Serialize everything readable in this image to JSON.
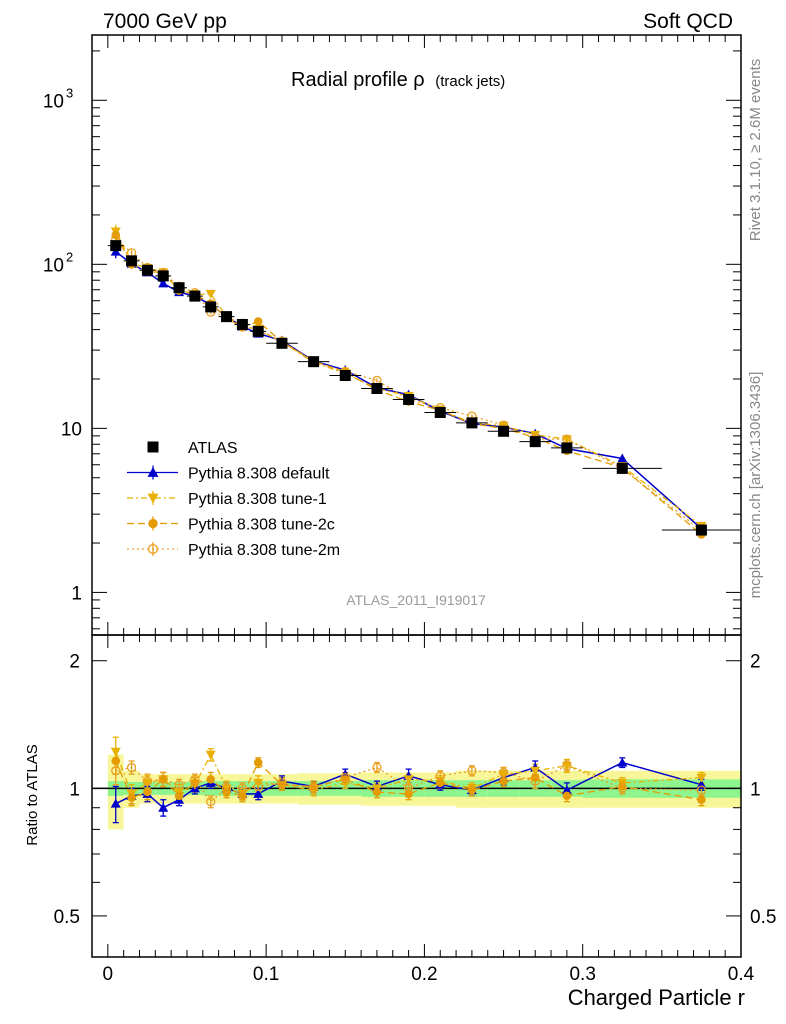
{
  "header": {
    "left": "7000 GeV pp",
    "right": "Soft QCD"
  },
  "side_labels": {
    "rivet": "Rivet 3.1.10, ≥ 2.6M events",
    "mcplots": "mcplots.cern.ch [arXiv:1306.3436]"
  },
  "chart_data": {
    "type": "line",
    "title_main": "Radial profile ρ",
    "title_sub": "(track jets)",
    "analysis_id": "ATLAS_2011_I919017",
    "xlabel": "Charged Particle r",
    "ylabel_ratio": "Ratio to ATLAS",
    "xlim": [
      -0.01,
      0.4
    ],
    "ylim_main": [
      0.55,
      2500
    ],
    "ylim_ratio": [
      0.4,
      2.3
    ],
    "yscale_main": "log",
    "yscale_ratio": "log",
    "x_ticks": [
      {
        "v": 0,
        "t": "0"
      },
      {
        "v": 0.1,
        "t": "0.1"
      },
      {
        "v": 0.2,
        "t": "0.2"
      },
      {
        "v": 0.3,
        "t": "0.3"
      },
      {
        "v": 0.4,
        "t": "0.4"
      }
    ],
    "y_ticks_main": [
      {
        "v": 1,
        "t": "1"
      },
      {
        "v": 10,
        "t": "10"
      },
      {
        "v": 100,
        "t": "10",
        "sup": "2"
      },
      {
        "v": 1000,
        "t": "10",
        "sup": "3"
      }
    ],
    "y_ticks_ratio": [
      {
        "v": 0.5,
        "t": "0.5"
      },
      {
        "v": 1,
        "t": "1"
      },
      {
        "v": 2,
        "t": "2"
      }
    ],
    "x": [
      0.005,
      0.015,
      0.025,
      0.035,
      0.045,
      0.055,
      0.065,
      0.075,
      0.085,
      0.095,
      0.11,
      0.13,
      0.15,
      0.17,
      0.19,
      0.21,
      0.23,
      0.25,
      0.27,
      0.29,
      0.325,
      0.375
    ],
    "x_err": [
      0.005,
      0.005,
      0.005,
      0.005,
      0.005,
      0.005,
      0.005,
      0.005,
      0.005,
      0.005,
      0.01,
      0.01,
      0.01,
      0.01,
      0.01,
      0.01,
      0.01,
      0.01,
      0.01,
      0.01,
      0.025,
      0.025
    ],
    "data": {
      "name": "ATLAS",
      "values": [
        130,
        105,
        92,
        85,
        72,
        64,
        55,
        48,
        43,
        39,
        33,
        25.5,
        21,
        17.5,
        15,
        12.5,
        10.8,
        9.6,
        8.3,
        7.6,
        5.7,
        2.4
      ],
      "stat_band": [
        0.04,
        0.035,
        0.035,
        0.035,
        0.035,
        0.035,
        0.04,
        0.04,
        0.04,
        0.04,
        0.04,
        0.04,
        0.04,
        0.045,
        0.045,
        0.045,
        0.045,
        0.045,
        0.045,
        0.045,
        0.05,
        0.05
      ],
      "total_band": [
        0.2,
        0.1,
        0.08,
        0.08,
        0.08,
        0.08,
        0.08,
        0.08,
        0.08,
        0.08,
        0.08,
        0.085,
        0.085,
        0.09,
        0.09,
        0.09,
        0.1,
        0.1,
        0.1,
        0.1,
        0.1,
        0.1
      ]
    },
    "series": [
      {
        "name": "Pythia 8.308 default",
        "color": "#0000cc",
        "marker": "triangle-up",
        "line": "solid",
        "ratio": [
          0.92,
          0.96,
          0.97,
          0.9,
          0.94,
          1.0,
          1.03,
          1.0,
          0.97,
          0.97,
          1.04,
          1.01,
          1.08,
          1.01,
          1.07,
          1.02,
          0.99,
          1.06,
          1.12,
          0.99,
          1.15,
          1.02
        ],
        "ratio_err": [
          0.09,
          0.04,
          0.04,
          0.04,
          0.03,
          0.03,
          0.03,
          0.03,
          0.03,
          0.03,
          0.03,
          0.03,
          0.03,
          0.03,
          0.04,
          0.03,
          0.03,
          0.04,
          0.04,
          0.04,
          0.03,
          0.03
        ]
      },
      {
        "name": "Pythia 8.308 tune-1",
        "color": "#e8b000",
        "marker": "triangle-down",
        "line": "dashdot",
        "ratio": [
          1.22,
          0.97,
          1.03,
          1.05,
          0.98,
          1.02,
          1.2,
          1.0,
          0.97,
          1.03,
          1.02,
          0.99,
          1.03,
          1.0,
          1.05,
          1.04,
          1.0,
          1.08,
          1.1,
          1.13,
          1.03,
          1.06
        ],
        "ratio_err": [
          0.1,
          0.05,
          0.04,
          0.04,
          0.04,
          0.04,
          0.04,
          0.04,
          0.03,
          0.04,
          0.03,
          0.03,
          0.03,
          0.03,
          0.03,
          0.03,
          0.03,
          0.04,
          0.04,
          0.04,
          0.03,
          0.03
        ]
      },
      {
        "name": "Pythia 8.308 tune-2c",
        "color": "#e39b00",
        "marker": "circle",
        "line": "dashed",
        "ratio": [
          1.16,
          0.95,
          0.98,
          1.05,
          0.96,
          1.03,
          1.05,
          0.98,
          0.96,
          1.15,
          1.02,
          1.01,
          1.05,
          0.98,
          0.97,
          1.03,
          0.99,
          1.04,
          1.06,
          0.96,
          1.01,
          0.94
        ],
        "ratio_err": [
          0.08,
          0.04,
          0.04,
          0.04,
          0.03,
          0.03,
          0.04,
          0.03,
          0.03,
          0.03,
          0.03,
          0.03,
          0.03,
          0.03,
          0.03,
          0.03,
          0.03,
          0.03,
          0.04,
          0.03,
          0.03,
          0.03
        ]
      },
      {
        "name": "Pythia 8.308 tune-2m",
        "color": "#e8a020",
        "marker": "open-circle",
        "line": "dotted",
        "ratio": [
          1.1,
          1.12,
          1.04,
          1.05,
          1.02,
          1.05,
          0.93,
          1.0,
          1.0,
          1.01,
          1.03,
          1.0,
          1.06,
          1.12,
          1.0,
          1.07,
          1.1,
          1.09,
          1.04,
          1.13,
          1.0,
          0.99
        ],
        "ratio_err": [
          0.08,
          0.04,
          0.04,
          0.04,
          0.03,
          0.03,
          0.03,
          0.03,
          0.03,
          0.03,
          0.03,
          0.03,
          0.03,
          0.03,
          0.03,
          0.03,
          0.03,
          0.03,
          0.04,
          0.03,
          0.03,
          0.03
        ]
      }
    ],
    "band_colors": {
      "stat": "#8ef58e",
      "total": "#f7f79a"
    },
    "legend_position": "bottom-left"
  }
}
